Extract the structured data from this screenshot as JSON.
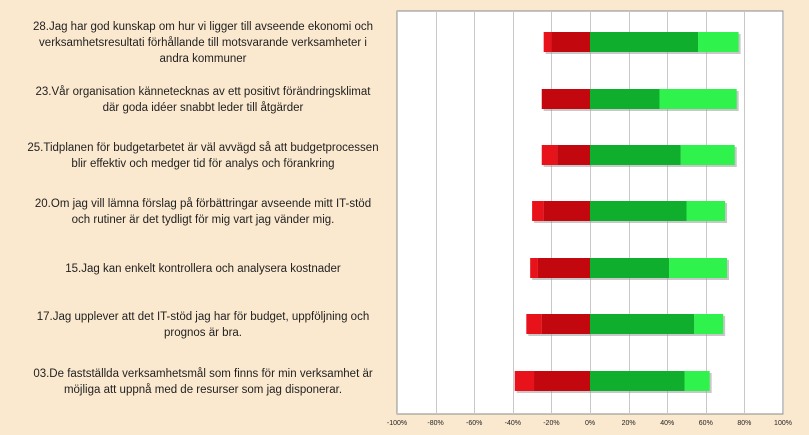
{
  "chart_data": {
    "type": "bar",
    "stacked": true,
    "orientation": "horizontal",
    "diverging": true,
    "title": "",
    "xlabel": "",
    "ylabel": "",
    "xlim": [
      -100,
      100
    ],
    "grid": true,
    "legend": "none",
    "x_ticks": [
      "-100%",
      "-80%",
      "-60%",
      "-40%",
      "-20%",
      "0%",
      "20%",
      "40%",
      "60%",
      "80%",
      "100%"
    ],
    "colors": {
      "strong_negative": "#e8121b",
      "negative": "#c2080e",
      "positive": "#0fae2c",
      "strong_positive": "#2ff24d",
      "plot_background": "#ffffff",
      "grid": "#c8c8c8",
      "page_background": "#fbe9cf"
    },
    "categories": [
      [
        "28.Jag har god kunskap om hur vi ligger till avseende ekonomi och",
        "verksamhetsresultati förhållande till motsvarande verksamheter i",
        "andra kommuner"
      ],
      [
        "23.Vår organisation kännetecknas av ett positivt förändringsklimat",
        "där goda idéer snabbt leder till åtgärder"
      ],
      [
        "25.Tidplanen för budgetarbetet är väl avvägd så att budgetprocessen",
        "blir effektiv och medger tid för analys och förankring"
      ],
      [
        "20.Om jag vill lämna förslag på förbättringar avseende mitt IT-stöd",
        "och rutiner är det tydligt för mig vart jag vänder mig."
      ],
      [
        "15.Jag kan enkelt kontrollera och analysera kostnader"
      ],
      [
        "17.Jag upplever att det IT-stöd jag har för budget, uppföljning och",
        "prognos är bra."
      ],
      [
        "03.De fastställda verksamhetsmål som finns för min verksamhet är",
        "möjliga att uppnå med de resurser som jag disponerar."
      ]
    ],
    "series": [
      {
        "values": [
          -4,
          0,
          -8,
          -6,
          -4,
          -8,
          -10
        ]
      },
      {
        "values": [
          -20,
          -25,
          -17,
          -24,
          -27,
          -25,
          -29
        ]
      },
      {
        "values": [
          56,
          36,
          47,
          50,
          41,
          54,
          49
        ]
      },
      {
        "values": [
          21,
          40,
          28,
          20,
          30,
          15,
          13
        ]
      }
    ]
  }
}
